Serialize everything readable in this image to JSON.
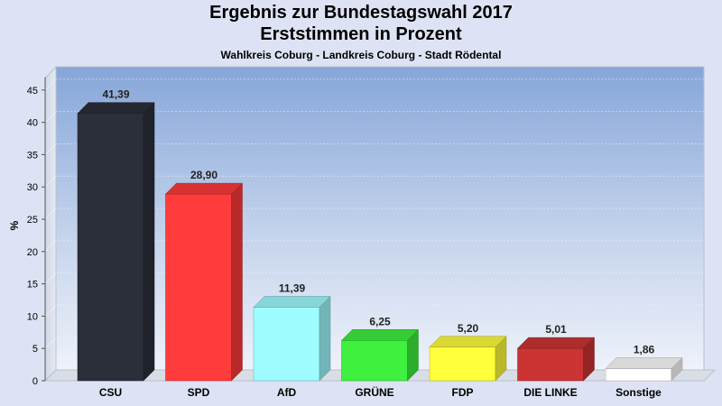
{
  "chart_data": {
    "type": "bar",
    "title": "Ergebnis zur Bundestagswahl 2017",
    "title_line2": "Erststimmen in Prozent",
    "subtitle": "Wahlkreis Coburg - Landkreis Coburg - Stadt Rödental",
    "xlabel": "",
    "ylabel": "%",
    "ylim": [
      0,
      47
    ],
    "yticks": [
      0,
      5,
      10,
      15,
      20,
      25,
      30,
      35,
      40,
      45
    ],
    "categories": [
      "CSU",
      "SPD",
      "AfD",
      "GRÜNE",
      "FDP",
      "DIE LINKE",
      "Sonstige"
    ],
    "values": [
      41.39,
      28.9,
      11.39,
      6.25,
      5.2,
      5.01,
      1.86
    ],
    "value_labels": [
      "41,39",
      "28,90",
      "11,39",
      "6,25",
      "5,20",
      "5,01",
      "1,86"
    ],
    "colors": [
      "#2b2f3a",
      "#ff3b3b",
      "#9ffcff",
      "#3ff03f",
      "#ffff3b",
      "#cc3434",
      "#ffffff"
    ],
    "grid": true,
    "legend": "none"
  }
}
